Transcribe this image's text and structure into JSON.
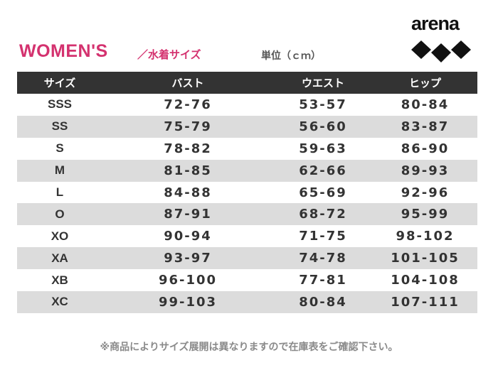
{
  "brand": {
    "logo_text": "arena",
    "logo_color": "#111111"
  },
  "header": {
    "title": "WOMEN'S",
    "subtitle": "／水着サイズ",
    "unit": "単位（ｃｍ）",
    "title_color": "#d4326f"
  },
  "table": {
    "columns": [
      "サイズ",
      "バスト",
      "ウエスト",
      "ヒップ"
    ],
    "rows": [
      [
        "SSS",
        "72-76",
        "53-57",
        "80-84"
      ],
      [
        "SS",
        "75-79",
        "56-60",
        "83-87"
      ],
      [
        "S",
        "78-82",
        "59-63",
        "86-90"
      ],
      [
        "M",
        "81-85",
        "62-66",
        "89-93"
      ],
      [
        "L",
        "84-88",
        "65-69",
        "92-96"
      ],
      [
        "O",
        "87-91",
        "68-72",
        "95-99"
      ],
      [
        "XO",
        "90-94",
        "71-75",
        "98-102"
      ],
      [
        "XA",
        "93-97",
        "74-78",
        "101-105"
      ],
      [
        "XB",
        "96-100",
        "77-81",
        "104-108"
      ],
      [
        "XC",
        "99-103",
        "80-84",
        "107-111"
      ]
    ],
    "header_bg": "#333333",
    "alt_row_bg": "#dcdcdc"
  },
  "footnote": "※商品によりサイズ展開は異なりますので在庫表をご確認下さい。"
}
